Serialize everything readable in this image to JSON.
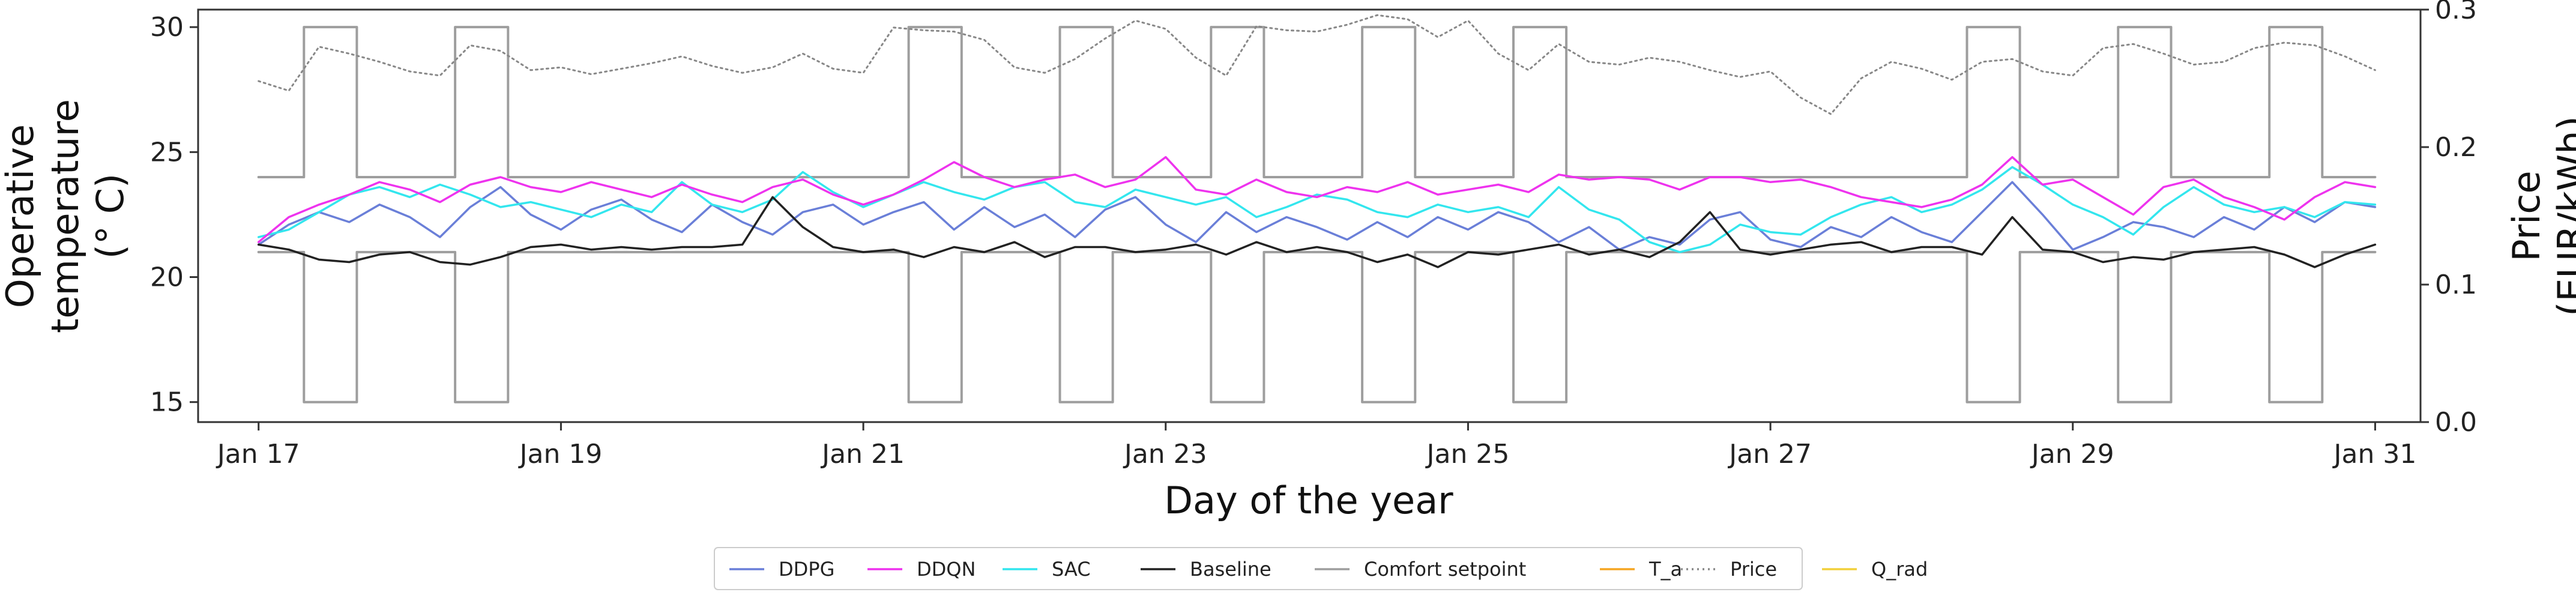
{
  "chart_data": {
    "type": "line",
    "xlabel": "Day of the year",
    "ylabel_left": [
      "Operative",
      "temperature",
      "(° C)"
    ],
    "ylabel_right": [
      "Price",
      "(EUR/kWh)"
    ],
    "xlim": [
      16.6,
      31.3
    ],
    "ylim_left": [
      14.2,
      30.7
    ],
    "ylim_right": [
      0.0,
      0.3
    ],
    "x_ticks": [
      {
        "value": 17,
        "label": "Jan 17"
      },
      {
        "value": 19,
        "label": "Jan 19"
      },
      {
        "value": 21,
        "label": "Jan 21"
      },
      {
        "value": 23,
        "label": "Jan 23"
      },
      {
        "value": 25,
        "label": "Jan 25"
      },
      {
        "value": 27,
        "label": "Jan 27"
      },
      {
        "value": 29,
        "label": "Jan 29"
      },
      {
        "value": 31,
        "label": "Jan 31"
      }
    ],
    "y_ticks_left": [
      {
        "value": 15,
        "label": "15"
      },
      {
        "value": 20,
        "label": "20"
      },
      {
        "value": 25,
        "label": "25"
      },
      {
        "value": 30,
        "label": "30"
      }
    ],
    "y_ticks_right": [
      {
        "value": 0.0,
        "label": "0.0"
      },
      {
        "value": 0.1,
        "label": "0.1"
      },
      {
        "value": 0.2,
        "label": "0.2"
      },
      {
        "value": 0.3,
        "label": "0.3"
      }
    ],
    "legend": {
      "placement": "bottom-center",
      "entries": [
        {
          "label": "DDPG",
          "color": "#6a7fd8",
          "style": "solid"
        },
        {
          "label": "DDQN",
          "color": "#ee33ee",
          "style": "solid"
        },
        {
          "label": "SAC",
          "color": "#33e6ee",
          "style": "solid"
        },
        {
          "label": "Baseline",
          "color": "#222222",
          "style": "solid"
        },
        {
          "label": "Comfort setpoint",
          "color": "#9e9e9e",
          "style": "solid"
        },
        {
          "label": "T_a",
          "color": "#f5a623",
          "style": "solid"
        },
        {
          "label": "Price",
          "color": "#888888",
          "style": "dotted"
        },
        {
          "label": "Q_rad",
          "color": "#f2d03b",
          "style": "solid"
        }
      ]
    },
    "series": [
      {
        "name": "DDPG",
        "axis": "left",
        "color": "#6a7fd8",
        "width": 3.5,
        "x": [
          17.0,
          17.2,
          17.4,
          17.6,
          17.8,
          18.0,
          18.2,
          18.4,
          18.6,
          18.8,
          19.0,
          19.2,
          19.4,
          19.6,
          19.8,
          20.0,
          20.2,
          20.4,
          20.6,
          20.8,
          21.0,
          21.2,
          21.4,
          21.6,
          21.8,
          22.0,
          22.2,
          22.4,
          22.6,
          22.8,
          23.0,
          23.2,
          23.4,
          23.6,
          23.8,
          24.0,
          24.2,
          24.4,
          24.6,
          24.8,
          25.0,
          25.2,
          25.4,
          25.6,
          25.8,
          26.0,
          26.2,
          26.4,
          26.6,
          26.8,
          27.0,
          27.2,
          27.4,
          27.6,
          27.8,
          28.0,
          28.2,
          28.4,
          28.6,
          28.8,
          29.0,
          29.2,
          29.4,
          29.6,
          29.8,
          30.0,
          30.2,
          30.4,
          30.6,
          30.8,
          31.0
        ],
        "y": [
          21.3,
          22.1,
          22.6,
          22.2,
          22.9,
          22.4,
          21.6,
          22.8,
          23.6,
          22.5,
          21.9,
          22.7,
          23.1,
          22.3,
          21.8,
          22.9,
          22.2,
          21.7,
          22.6,
          22.9,
          22.1,
          22.6,
          23.0,
          21.9,
          22.8,
          22.0,
          22.5,
          21.6,
          22.7,
          23.2,
          22.1,
          21.4,
          22.6,
          21.8,
          22.4,
          22.0,
          21.5,
          22.2,
          21.6,
          22.4,
          21.9,
          22.6,
          22.2,
          21.4,
          22.0,
          21.1,
          21.6,
          21.3,
          22.3,
          22.6,
          21.5,
          21.2,
          22.0,
          21.6,
          22.4,
          21.8,
          21.4,
          22.6,
          23.8,
          22.5,
          21.1,
          21.6,
          22.2,
          22.0,
          21.6,
          22.4,
          21.9,
          22.8,
          22.2,
          23.0,
          22.8
        ]
      },
      {
        "name": "DDQN",
        "axis": "left",
        "color": "#ee33ee",
        "width": 3.5,
        "x": [
          17.0,
          17.2,
          17.4,
          17.6,
          17.8,
          18.0,
          18.2,
          18.4,
          18.6,
          18.8,
          19.0,
          19.2,
          19.4,
          19.6,
          19.8,
          20.0,
          20.2,
          20.4,
          20.6,
          20.8,
          21.0,
          21.2,
          21.4,
          21.6,
          21.8,
          22.0,
          22.2,
          22.4,
          22.6,
          22.8,
          23.0,
          23.2,
          23.4,
          23.6,
          23.8,
          24.0,
          24.2,
          24.4,
          24.6,
          24.8,
          25.0,
          25.2,
          25.4,
          25.6,
          25.8,
          26.0,
          26.2,
          26.4,
          26.6,
          26.8,
          27.0,
          27.2,
          27.4,
          27.6,
          27.8,
          28.0,
          28.2,
          28.4,
          28.6,
          28.8,
          29.0,
          29.2,
          29.4,
          29.6,
          29.8,
          30.0,
          30.2,
          30.4,
          30.6,
          30.8,
          31.0
        ],
        "y": [
          21.4,
          22.4,
          22.9,
          23.3,
          23.8,
          23.5,
          23.0,
          23.7,
          24.0,
          23.6,
          23.4,
          23.8,
          23.5,
          23.2,
          23.7,
          23.3,
          23.0,
          23.6,
          23.9,
          23.3,
          22.9,
          23.3,
          23.9,
          24.6,
          24.0,
          23.6,
          23.9,
          24.1,
          23.6,
          23.9,
          24.8,
          23.5,
          23.3,
          23.9,
          23.4,
          23.2,
          23.6,
          23.4,
          23.8,
          23.3,
          23.5,
          23.7,
          23.4,
          24.1,
          23.9,
          24.0,
          23.9,
          23.5,
          24.0,
          24.0,
          23.8,
          23.9,
          23.6,
          23.2,
          23.0,
          22.8,
          23.1,
          23.7,
          24.8,
          23.7,
          23.9,
          23.2,
          22.5,
          23.6,
          23.9,
          23.2,
          22.8,
          22.3,
          23.2,
          23.8,
          23.6
        ]
      },
      {
        "name": "SAC",
        "axis": "left",
        "color": "#33e6ee",
        "width": 3.5,
        "x": [
          17.0,
          17.2,
          17.4,
          17.6,
          17.8,
          18.0,
          18.2,
          18.4,
          18.6,
          18.8,
          19.0,
          19.2,
          19.4,
          19.6,
          19.8,
          20.0,
          20.2,
          20.4,
          20.6,
          20.8,
          21.0,
          21.2,
          21.4,
          21.6,
          21.8,
          22.0,
          22.2,
          22.4,
          22.6,
          22.8,
          23.0,
          23.2,
          23.4,
          23.6,
          23.8,
          24.0,
          24.2,
          24.4,
          24.6,
          24.8,
          25.0,
          25.2,
          25.4,
          25.6,
          25.8,
          26.0,
          26.2,
          26.4,
          26.6,
          26.8,
          27.0,
          27.2,
          27.4,
          27.6,
          27.8,
          28.0,
          28.2,
          28.4,
          28.6,
          28.8,
          29.0,
          29.2,
          29.4,
          29.6,
          29.8,
          30.0,
          30.2,
          30.4,
          30.6,
          30.8,
          31.0
        ],
        "y": [
          21.6,
          21.9,
          22.6,
          23.3,
          23.6,
          23.2,
          23.7,
          23.3,
          22.8,
          23.0,
          22.7,
          22.4,
          22.9,
          22.6,
          23.8,
          22.9,
          22.6,
          23.1,
          24.2,
          23.4,
          22.8,
          23.3,
          23.8,
          23.4,
          23.1,
          23.6,
          23.8,
          23.0,
          22.8,
          23.5,
          23.2,
          22.9,
          23.2,
          22.4,
          22.8,
          23.3,
          23.1,
          22.6,
          22.4,
          22.9,
          22.6,
          22.8,
          22.4,
          23.6,
          22.7,
          22.3,
          21.4,
          21.0,
          21.3,
          22.1,
          21.8,
          21.7,
          22.4,
          22.9,
          23.2,
          22.6,
          22.9,
          23.5,
          24.4,
          23.7,
          22.9,
          22.4,
          21.7,
          22.8,
          23.6,
          22.9,
          22.6,
          22.8,
          22.4,
          23.0,
          22.9
        ]
      },
      {
        "name": "Baseline",
        "axis": "left",
        "color": "#222222",
        "width": 3.5,
        "x": [
          17.0,
          17.2,
          17.4,
          17.6,
          17.8,
          18.0,
          18.2,
          18.4,
          18.6,
          18.8,
          19.0,
          19.2,
          19.4,
          19.6,
          19.8,
          20.0,
          20.2,
          20.4,
          20.6,
          20.8,
          21.0,
          21.2,
          21.4,
          21.6,
          21.8,
          22.0,
          22.2,
          22.4,
          22.6,
          22.8,
          23.0,
          23.2,
          23.4,
          23.6,
          23.8,
          24.0,
          24.2,
          24.4,
          24.6,
          24.8,
          25.0,
          25.2,
          25.4,
          25.6,
          25.8,
          26.0,
          26.2,
          26.4,
          26.6,
          26.8,
          27.0,
          27.2,
          27.4,
          27.6,
          27.8,
          28.0,
          28.2,
          28.4,
          28.6,
          28.8,
          29.0,
          29.2,
          29.4,
          29.6,
          29.8,
          30.0,
          30.2,
          30.4,
          30.6,
          30.8,
          31.0
        ],
        "y": [
          21.3,
          21.1,
          20.7,
          20.6,
          20.9,
          21.0,
          20.6,
          20.5,
          20.8,
          21.2,
          21.3,
          21.1,
          21.2,
          21.1,
          21.2,
          21.2,
          21.3,
          23.2,
          22.0,
          21.2,
          21.0,
          21.1,
          20.8,
          21.2,
          21.0,
          21.4,
          20.8,
          21.2,
          21.2,
          21.0,
          21.1,
          21.3,
          20.9,
          21.4,
          21.0,
          21.2,
          21.0,
          20.6,
          20.9,
          20.4,
          21.0,
          20.9,
          21.1,
          21.3,
          20.9,
          21.1,
          20.8,
          21.4,
          22.6,
          21.1,
          20.9,
          21.1,
          21.3,
          21.4,
          21.0,
          21.2,
          21.2,
          20.9,
          22.4,
          21.1,
          21.0,
          20.6,
          20.8,
          20.7,
          21.0,
          21.1,
          21.2,
          20.9,
          20.4,
          20.9,
          21.3
        ]
      },
      {
        "name": "Comfort setpoint",
        "axis": "left",
        "color": "#9e9e9e",
        "width": 4,
        "step": true,
        "x": [
          17.0,
          17.3,
          17.3,
          17.65,
          17.65,
          18.3,
          18.3,
          18.65,
          18.65,
          21.3,
          21.3,
          21.65,
          21.65,
          22.3,
          22.3,
          22.65,
          22.65,
          23.3,
          23.3,
          23.65,
          23.65,
          24.3,
          24.3,
          24.65,
          24.65,
          25.3,
          25.3,
          25.65,
          25.65,
          28.3,
          28.3,
          28.65,
          28.65,
          29.3,
          29.3,
          29.65,
          29.65,
          30.3,
          30.3,
          30.65,
          30.65,
          31.0
        ],
        "y": [
          24,
          24,
          30,
          30,
          24,
          24,
          30,
          30,
          24,
          24,
          30,
          30,
          24,
          24,
          30,
          30,
          24,
          24,
          30,
          30,
          24,
          24,
          30,
          30,
          24,
          24,
          30,
          30,
          24,
          24,
          30,
          30,
          24,
          24,
          30,
          30,
          24,
          24,
          30,
          30,
          24,
          24
        ]
      },
      {
        "name": "Comfort setpoint",
        "axis": "left",
        "color": "#9e9e9e",
        "width": 4,
        "step": true,
        "x": [
          17.0,
          17.3,
          17.3,
          17.65,
          17.65,
          18.3,
          18.3,
          18.65,
          18.65,
          21.3,
          21.3,
          21.65,
          21.65,
          22.3,
          22.3,
          22.65,
          22.65,
          23.3,
          23.3,
          23.65,
          23.65,
          24.3,
          24.3,
          24.65,
          24.65,
          25.3,
          25.3,
          25.65,
          25.65,
          28.3,
          28.3,
          28.65,
          28.65,
          29.3,
          29.3,
          29.65,
          29.65,
          30.3,
          30.3,
          30.65,
          30.65,
          31.0
        ],
        "y": [
          21,
          21,
          15,
          15,
          21,
          21,
          15,
          15,
          21,
          21,
          15,
          15,
          21,
          21,
          15,
          15,
          21,
          21,
          15,
          15,
          21,
          21,
          15,
          15,
          21,
          21,
          15,
          15,
          21,
          21,
          15,
          15,
          21,
          21,
          15,
          15,
          21,
          21,
          15,
          15,
          21,
          21
        ]
      },
      {
        "name": "Price",
        "axis": "right",
        "color": "#888888",
        "width": 3,
        "dotted": true,
        "x": [
          17.0,
          17.2,
          17.4,
          17.6,
          17.8,
          18.0,
          18.2,
          18.4,
          18.6,
          18.8,
          19.0,
          19.2,
          19.4,
          19.6,
          19.8,
          20.0,
          20.2,
          20.4,
          20.6,
          20.8,
          21.0,
          21.2,
          21.4,
          21.6,
          21.8,
          22.0,
          22.2,
          22.4,
          22.6,
          22.8,
          23.0,
          23.2,
          23.4,
          23.6,
          23.8,
          24.0,
          24.2,
          24.4,
          24.6,
          24.8,
          25.0,
          25.2,
          25.4,
          25.6,
          25.8,
          26.0,
          26.2,
          26.4,
          26.6,
          26.8,
          27.0,
          27.2,
          27.4,
          27.6,
          27.8,
          28.0,
          28.2,
          28.4,
          28.6,
          28.8,
          29.0,
          29.2,
          29.4,
          29.6,
          29.8,
          30.0,
          30.2,
          30.4,
          30.6,
          30.8,
          31.0
        ],
        "y": [
          0.248,
          0.241,
          0.273,
          0.268,
          0.262,
          0.255,
          0.252,
          0.274,
          0.27,
          0.256,
          0.258,
          0.253,
          0.257,
          0.261,
          0.266,
          0.259,
          0.254,
          0.258,
          0.268,
          0.257,
          0.254,
          0.287,
          0.285,
          0.284,
          0.278,
          0.258,
          0.254,
          0.264,
          0.279,
          0.292,
          0.286,
          0.265,
          0.252,
          0.288,
          0.285,
          0.284,
          0.289,
          0.296,
          0.293,
          0.28,
          0.292,
          0.268,
          0.256,
          0.275,
          0.262,
          0.26,
          0.265,
          0.262,
          0.256,
          0.251,
          0.255,
          0.236,
          0.224,
          0.25,
          0.262,
          0.257,
          0.249,
          0.262,
          0.264,
          0.255,
          0.252,
          0.272,
          0.275,
          0.268,
          0.26,
          0.262,
          0.272,
          0.276,
          0.274,
          0.266,
          0.256
        ]
      }
    ]
  }
}
